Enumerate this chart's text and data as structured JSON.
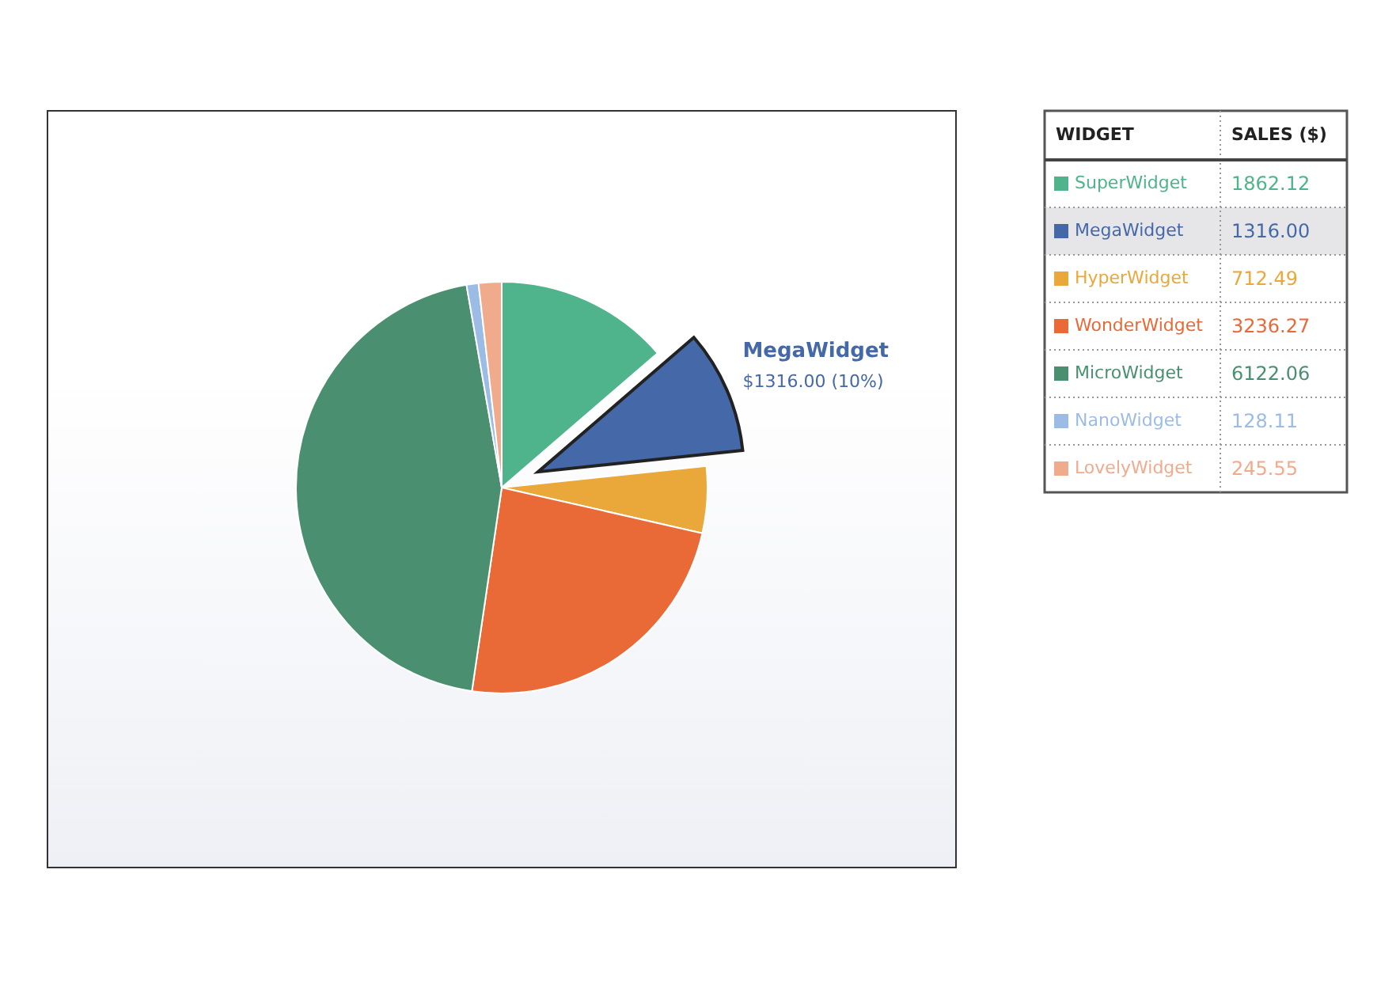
{
  "chart_data": {
    "type": "pie",
    "categories": [
      "SuperWidget",
      "MegaWidget",
      "HyperWidget",
      "WonderWidget",
      "MicroWidget",
      "NanoWidget",
      "LovelyWidget"
    ],
    "values": [
      1862.12,
      1316.0,
      712.49,
      3236.27,
      6122.06,
      128.11,
      245.55
    ],
    "colors": [
      "#4fb48b",
      "#4569a8",
      "#eba83a",
      "#e96a37",
      "#4b8f71",
      "#9cbce6",
      "#f0ab8c"
    ],
    "value_labels": [
      "1862.12",
      "1316.00",
      "712.49",
      "3236.27",
      "6122.06",
      "128.11",
      "245.55"
    ],
    "legend": "right",
    "annotations": [
      "WIDGET",
      "SALES ($)",
      {
        "text": "MegaWidget",
        "x": "MegaWidget"
      },
      {
        "text": "$1316.00 (10%)",
        "x": "MegaWidget"
      }
    ]
  }
}
